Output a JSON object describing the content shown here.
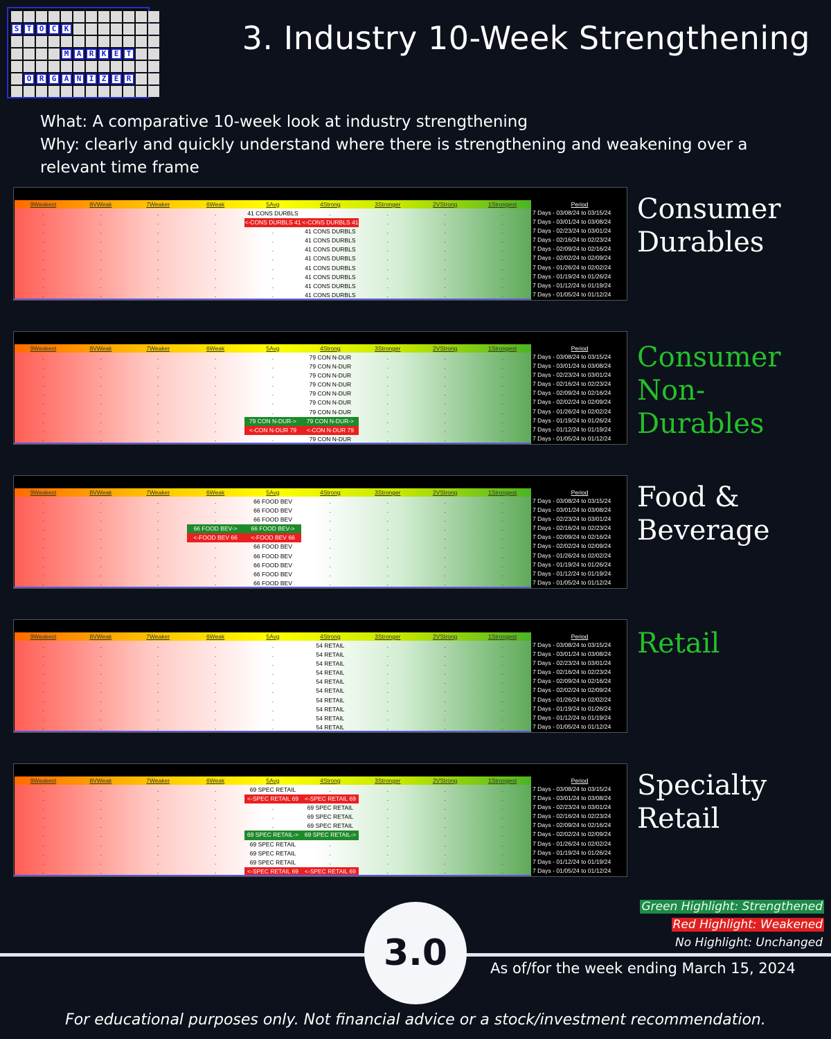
{
  "logo": {
    "rows": [
      {
        "cells": [
          "",
          "",
          "",
          "",
          "",
          "",
          "",
          "",
          "",
          "",
          "",
          ""
        ],
        "hl": []
      },
      {
        "cells": [
          "S",
          "T",
          "O",
          "C",
          "K",
          "",
          "",
          "",
          "",
          "",
          "S",
          "M"
        ],
        "hl": [
          0,
          1,
          2,
          3,
          4
        ]
      },
      {
        "cells": [
          "",
          "",
          "",
          "",
          "",
          "",
          "",
          "",
          "",
          "",
          "",
          ""
        ],
        "hl": []
      },
      {
        "cells": [
          "",
          "",
          "",
          "",
          "M",
          "A",
          "R",
          "K",
          "E",
          "T",
          "",
          ""
        ],
        "hl": [
          4,
          5,
          6,
          7,
          8,
          9
        ]
      },
      {
        "cells": [
          "",
          "",
          "",
          "",
          "",
          "",
          "",
          "",
          "",
          "",
          "",
          ""
        ],
        "hl": []
      },
      {
        "cells": [
          "",
          "O",
          "R",
          "G",
          "A",
          "N",
          "I",
          "Z",
          "E",
          "R",
          "",
          ""
        ],
        "hl": [
          1,
          2,
          3,
          4,
          5,
          6,
          7,
          8,
          9
        ]
      },
      {
        "cells": [
          "",
          "",
          "",
          "",
          "",
          "",
          "",
          "",
          "",
          "",
          "",
          ""
        ],
        "hl": []
      }
    ]
  },
  "title": "3. Industry 10-Week Strengthening",
  "what": "What: A comparative 10-week look at industry strengthening",
  "why": "Why: clearly and quickly understand where there is strengthening and weakening over a relevant time frame",
  "columns": [
    "9Weakest",
    "8VWeak",
    "7Weaker",
    "6Weak",
    "5Avg",
    "4Strong",
    "3Stronger",
    "2VStrong",
    "1Strongest"
  ],
  "period_header": "Period",
  "periods": [
    "7 Days - 03/08/24 to 03/15/24",
    "7 Days - 03/01/24 to 03/08/24",
    "7 Days - 02/23/24 to 03/01/24",
    "7 Days - 02/16/24 to 02/23/24",
    "7 Days - 02/09/24 to 02/16/24",
    "7 Days - 02/02/24 to 02/09/24",
    "7 Days - 01/26/24 to 02/02/24",
    "7 Days - 01/19/24 to 01/26/24",
    "7 Days - 01/12/24 to 01/19/24",
    "7 Days - 01/05/24 to 01/12/24"
  ],
  "panels": [
    {
      "name": "Consumer Durables",
      "name_green": false,
      "rows": [
        [
          ".",
          ".",
          ".",
          ".",
          "41 CONS DURBLS",
          ".",
          ".",
          ".",
          "."
        ],
        [
          ".",
          ".",
          ".",
          ".",
          "r:<-CONS DURBLS 41",
          "r:<-CONS DURBLS 41",
          ".",
          ".",
          "."
        ],
        [
          ".",
          ".",
          ".",
          ".",
          ".",
          "41 CONS DURBLS",
          ".",
          ".",
          "."
        ],
        [
          ".",
          ".",
          ".",
          ".",
          ".",
          "41 CONS DURBLS",
          ".",
          ".",
          "."
        ],
        [
          ".",
          ".",
          ".",
          ".",
          ".",
          "41 CONS DURBLS",
          ".",
          ".",
          "."
        ],
        [
          ".",
          ".",
          ".",
          ".",
          ".",
          "41 CONS DURBLS",
          ".",
          ".",
          "."
        ],
        [
          ".",
          ".",
          ".",
          ".",
          ".",
          "41 CONS DURBLS",
          ".",
          ".",
          "."
        ],
        [
          ".",
          ".",
          ".",
          ".",
          ".",
          "41 CONS DURBLS",
          ".",
          ".",
          "."
        ],
        [
          ".",
          ".",
          ".",
          ".",
          ".",
          "41 CONS DURBLS",
          ".",
          ".",
          "."
        ],
        [
          ".",
          ".",
          ".",
          ".",
          ".",
          "41 CONS DURBLS",
          ".",
          ".",
          "."
        ]
      ]
    },
    {
      "name": "Consumer Non-Durables",
      "name_green": true,
      "rows": [
        [
          ".",
          ".",
          ".",
          ".",
          ".",
          "79 CON N-DUR",
          ".",
          ".",
          "."
        ],
        [
          ".",
          ".",
          ".",
          ".",
          ".",
          "79 CON N-DUR",
          ".",
          ".",
          "."
        ],
        [
          ".",
          ".",
          ".",
          ".",
          ".",
          "79 CON N-DUR",
          ".",
          ".",
          "."
        ],
        [
          ".",
          ".",
          ".",
          ".",
          ".",
          "79 CON N-DUR",
          ".",
          ".",
          "."
        ],
        [
          ".",
          ".",
          ".",
          ".",
          ".",
          "79 CON N-DUR",
          ".",
          ".",
          "."
        ],
        [
          ".",
          ".",
          ".",
          ".",
          ".",
          "79 CON N-DUR",
          ".",
          ".",
          "."
        ],
        [
          ".",
          ".",
          ".",
          ".",
          ".",
          "79 CON N-DUR",
          ".",
          ".",
          "."
        ],
        [
          ".",
          ".",
          ".",
          ".",
          "g:79 CON N-DUR->",
          "g:79 CON N-DUR->",
          ".",
          ".",
          "."
        ],
        [
          ".",
          ".",
          ".",
          ".",
          "r:<-CON N-DUR 79",
          "r:<-CON N-DUR 79",
          ".",
          ".",
          "."
        ],
        [
          ".",
          ".",
          ".",
          ".",
          ".",
          "79 CON N-DUR",
          ".",
          ".",
          "."
        ]
      ]
    },
    {
      "name": "Food & Beverage",
      "name_green": false,
      "rows": [
        [
          ".",
          ".",
          ".",
          ".",
          "66 FOOD BEV",
          ".",
          ".",
          ".",
          "."
        ],
        [
          ".",
          ".",
          ".",
          ".",
          "66 FOOD BEV",
          ".",
          ".",
          ".",
          "."
        ],
        [
          ".",
          ".",
          ".",
          ".",
          "66 FOOD BEV",
          ".",
          ".",
          ".",
          "."
        ],
        [
          ".",
          ".",
          ".",
          "g:66 FOOD BEV->",
          "g:66 FOOD BEV->",
          ".",
          ".",
          ".",
          "."
        ],
        [
          ".",
          ".",
          ".",
          "r:<-FOOD BEV 66",
          "r:<-FOOD BEV 66",
          ".",
          ".",
          ".",
          "."
        ],
        [
          ".",
          ".",
          ".",
          ".",
          "66 FOOD BEV",
          ".",
          ".",
          ".",
          "."
        ],
        [
          ".",
          ".",
          ".",
          ".",
          "66 FOOD BEV",
          ".",
          ".",
          ".",
          "."
        ],
        [
          ".",
          ".",
          ".",
          ".",
          "66 FOOD BEV",
          ".",
          ".",
          ".",
          "."
        ],
        [
          ".",
          ".",
          ".",
          ".",
          "66 FOOD BEV",
          ".",
          ".",
          ".",
          "."
        ],
        [
          ".",
          ".",
          ".",
          ".",
          "66 FOOD BEV",
          ".",
          ".",
          ".",
          "."
        ]
      ]
    },
    {
      "name": "Retail",
      "name_green": true,
      "rows": [
        [
          ".",
          ".",
          ".",
          ".",
          ".",
          "54 RETAIL",
          ".",
          ".",
          "."
        ],
        [
          ".",
          ".",
          ".",
          ".",
          ".",
          "54 RETAIL",
          ".",
          ".",
          "."
        ],
        [
          ".",
          ".",
          ".",
          ".",
          ".",
          "54 RETAIL",
          ".",
          ".",
          "."
        ],
        [
          ".",
          ".",
          ".",
          ".",
          ".",
          "54 RETAIL",
          ".",
          ".",
          "."
        ],
        [
          ".",
          ".",
          ".",
          ".",
          ".",
          "54 RETAIL",
          ".",
          ".",
          "."
        ],
        [
          ".",
          ".",
          ".",
          ".",
          ".",
          "54 RETAIL",
          ".",
          ".",
          "."
        ],
        [
          ".",
          ".",
          ".",
          ".",
          ".",
          "54 RETAIL",
          ".",
          ".",
          "."
        ],
        [
          ".",
          ".",
          ".",
          ".",
          ".",
          "54 RETAIL",
          ".",
          ".",
          "."
        ],
        [
          ".",
          ".",
          ".",
          ".",
          ".",
          "54 RETAIL",
          ".",
          ".",
          "."
        ],
        [
          ".",
          ".",
          ".",
          ".",
          ".",
          "54 RETAIL",
          ".",
          ".",
          "."
        ]
      ]
    },
    {
      "name": "Specialty Retail",
      "name_green": false,
      "rows": [
        [
          ".",
          ".",
          ".",
          ".",
          "69 SPEC RETAIL",
          ".",
          ".",
          ".",
          "."
        ],
        [
          ".",
          ".",
          ".",
          ".",
          "r:<-SPEC RETAIL 69",
          "r:<-SPEC RETAIL 69",
          ".",
          ".",
          "."
        ],
        [
          ".",
          ".",
          ".",
          ".",
          ".",
          "69 SPEC RETAIL",
          ".",
          ".",
          "."
        ],
        [
          ".",
          ".",
          ".",
          ".",
          ".",
          "69 SPEC RETAIL",
          ".",
          ".",
          "."
        ],
        [
          ".",
          ".",
          ".",
          ".",
          ".",
          "69 SPEC RETAIL",
          ".",
          ".",
          "."
        ],
        [
          ".",
          ".",
          ".",
          ".",
          "g:69 SPEC RETAIL->",
          "g:69 SPEC RETAIL->",
          ".",
          ".",
          "."
        ],
        [
          ".",
          ".",
          ".",
          ".",
          "69 SPEC RETAIL",
          ".",
          ".",
          ".",
          "."
        ],
        [
          ".",
          ".",
          ".",
          ".",
          "69 SPEC RETAIL",
          ".",
          ".",
          ".",
          "."
        ],
        [
          ".",
          ".",
          ".",
          ".",
          "69 SPEC RETAIL",
          ".",
          ".",
          ".",
          "."
        ],
        [
          ".",
          ".",
          ".",
          ".",
          "r:<-SPEC RETAIL 69",
          "r:<-SPEC RETAIL 69",
          ".",
          ".",
          "."
        ]
      ]
    }
  ],
  "legend": {
    "green": "Green Highlight: Strengthened",
    "red": "Red Highlight: Weakened",
    "none": "No Highlight: Unchanged"
  },
  "badge": "3.0",
  "as_of": "As of/for the week ending March 15, 2024",
  "disclaimer": "For educational purposes only. Not financial advice or a stock/investment recommendation.",
  "colors": {
    "background": "#0c111b",
    "green": "#1f8a2a",
    "red": "#ea2020",
    "name_green": "#25c02a"
  }
}
